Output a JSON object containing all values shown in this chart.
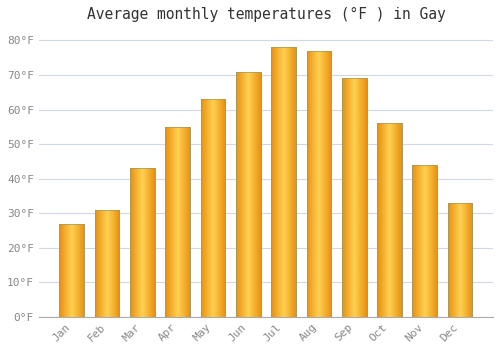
{
  "title": "Average monthly temperatures (°F ) in Gay",
  "months": [
    "Jan",
    "Feb",
    "Mar",
    "Apr",
    "May",
    "Jun",
    "Jul",
    "Aug",
    "Sep",
    "Oct",
    "Nov",
    "Dec"
  ],
  "values": [
    27,
    31,
    43,
    55,
    63,
    71,
    78,
    77,
    69,
    56,
    44,
    33
  ],
  "bar_color_center": "#FFD050",
  "bar_color_edge": "#E89010",
  "bar_border_color": "#999966",
  "background_color": "#ffffff",
  "plot_bg_color": "#ffffff",
  "grid_color": "#d0d8e8",
  "ylim": [
    0,
    83
  ],
  "yticks": [
    0,
    10,
    20,
    30,
    40,
    50,
    60,
    70,
    80
  ],
  "ytick_labels": [
    "0°F",
    "10°F",
    "20°F",
    "30°F",
    "40°F",
    "50°F",
    "60°F",
    "70°F",
    "80°F"
  ],
  "title_fontsize": 10.5,
  "tick_fontsize": 8,
  "tick_color": "#888888",
  "title_color": "#333333",
  "bar_width": 0.7,
  "font_family": "monospace"
}
